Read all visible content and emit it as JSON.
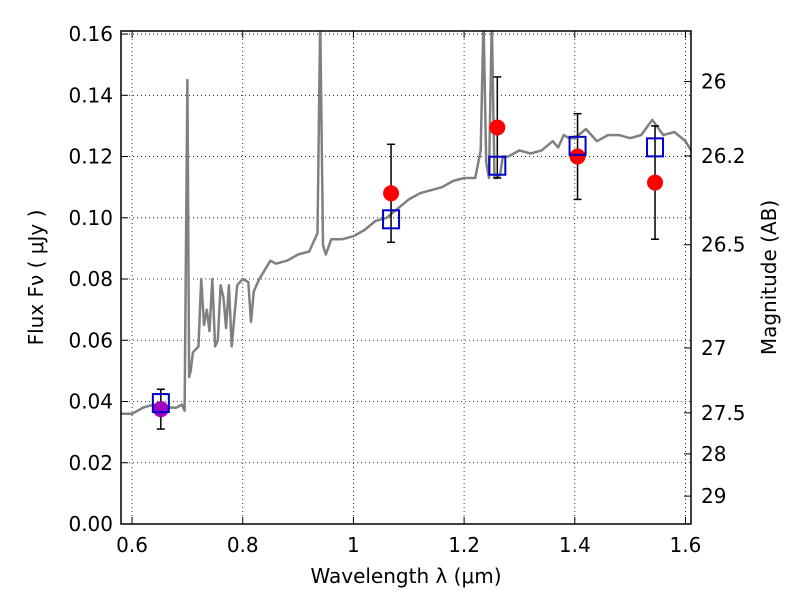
{
  "chart_data": {
    "type": "scatter",
    "xlabel": "Wavelength  λ (μm)",
    "ylabel_left": "Flux  Fν  ( μJy )",
    "ylabel_right": "Magnitude (AB)",
    "xlim": [
      0.58,
      1.61
    ],
    "ylim": [
      0.0,
      0.161
    ],
    "x_ticks": [
      0.6,
      0.8,
      1.0,
      1.2,
      1.4,
      1.6
    ],
    "x_tick_labels": [
      "0.6",
      "0.8",
      "1",
      "1.2",
      "1.4",
      "1.6"
    ],
    "y_ticks": [
      0.0,
      0.02,
      0.04,
      0.06,
      0.08,
      0.1,
      0.12,
      0.14,
      0.16
    ],
    "y_tick_labels": [
      "0.00",
      "0.02",
      "0.04",
      "0.06",
      "0.08",
      "0.10",
      "0.12",
      "0.14",
      "0.16"
    ],
    "right_ticks": [
      {
        "label": "26",
        "flux": 0.1445
      },
      {
        "label": "26.2",
        "flux": 0.1202
      },
      {
        "label": "26.5",
        "flux": 0.0912
      },
      {
        "label": "27",
        "flux": 0.0575
      },
      {
        "label": "27.5",
        "flux": 0.0363
      },
      {
        "label": "28",
        "flux": 0.0229
      },
      {
        "label": "29",
        "flux": 0.0091
      }
    ],
    "grid": true,
    "series": [
      {
        "kind": "spectrum",
        "color": "#808080",
        "x": [
          0.58,
          0.6,
          0.62,
          0.64,
          0.66,
          0.68,
          0.69,
          0.695,
          0.7,
          0.703,
          0.706,
          0.71,
          0.72,
          0.725,
          0.73,
          0.735,
          0.74,
          0.745,
          0.75,
          0.755,
          0.76,
          0.765,
          0.77,
          0.775,
          0.78,
          0.79,
          0.8,
          0.81,
          0.815,
          0.82,
          0.83,
          0.84,
          0.85,
          0.86,
          0.88,
          0.9,
          0.92,
          0.935,
          0.94,
          0.945,
          0.95,
          0.96,
          0.98,
          1.0,
          1.02,
          1.04,
          1.06,
          1.08,
          1.1,
          1.12,
          1.14,
          1.16,
          1.18,
          1.2,
          1.22,
          1.23,
          1.235,
          1.24,
          1.245,
          1.25,
          1.255,
          1.26,
          1.265,
          1.27,
          1.28,
          1.3,
          1.32,
          1.34,
          1.36,
          1.37,
          1.38,
          1.39,
          1.4,
          1.42,
          1.44,
          1.46,
          1.48,
          1.5,
          1.52,
          1.54,
          1.56,
          1.58,
          1.6,
          1.61
        ],
        "y": [
          0.036,
          0.036,
          0.038,
          0.039,
          0.038,
          0.038,
          0.039,
          0.037,
          0.145,
          0.048,
          0.05,
          0.056,
          0.058,
          0.08,
          0.065,
          0.07,
          0.063,
          0.08,
          0.058,
          0.06,
          0.078,
          0.074,
          0.064,
          0.078,
          0.058,
          0.078,
          0.08,
          0.079,
          0.066,
          0.076,
          0.08,
          0.083,
          0.086,
          0.085,
          0.086,
          0.088,
          0.089,
          0.095,
          0.165,
          0.091,
          0.088,
          0.093,
          0.093,
          0.094,
          0.096,
          0.099,
          0.1,
          0.103,
          0.106,
          0.108,
          0.109,
          0.11,
          0.112,
          0.113,
          0.113,
          0.122,
          0.165,
          0.118,
          0.113,
          0.165,
          0.113,
          0.113,
          0.114,
          0.12,
          0.12,
          0.122,
          0.121,
          0.122,
          0.125,
          0.123,
          0.127,
          0.126,
          0.126,
          0.129,
          0.125,
          0.127,
          0.127,
          0.126,
          0.127,
          0.132,
          0.127,
          0.128,
          0.125,
          0.122
        ]
      },
      {
        "kind": "observed",
        "color": "#ff0000",
        "x": [
          0.652,
          1.068,
          1.26,
          1.405,
          1.545
        ],
        "y": [
          0.0375,
          0.108,
          0.1295,
          0.12,
          0.1115
        ],
        "yerr": [
          0.0065,
          0.016,
          0.0165,
          0.014,
          0.0185
        ]
      },
      {
        "kind": "model",
        "color": "#0000cc",
        "marker": "open-square",
        "x": [
          0.652,
          1.068,
          1.26,
          1.405,
          1.545
        ],
        "y": [
          0.0395,
          0.0995,
          0.117,
          0.1235,
          0.123
        ]
      }
    ]
  }
}
